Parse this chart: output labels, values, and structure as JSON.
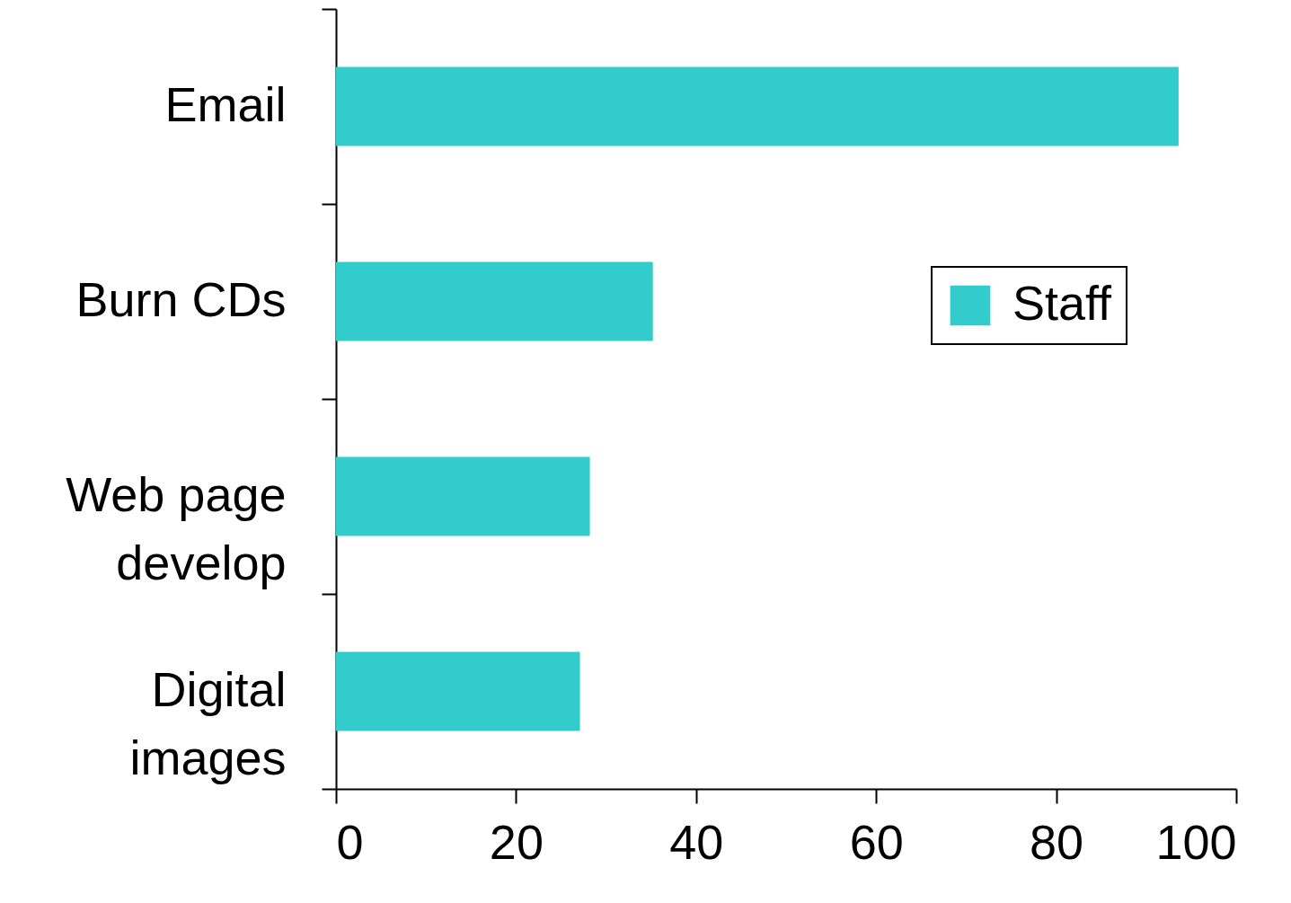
{
  "chart_data": {
    "type": "bar",
    "orientation": "horizontal",
    "categories": [
      "Email",
      "Burn CDs",
      "Web page\ndevelop",
      "Digital\nimages"
    ],
    "series": [
      {
        "name": "Staff",
        "color": "#33cccc",
        "values": [
          93.6,
          35.2,
          28.2,
          27.1
        ]
      }
    ],
    "xlim": [
      0,
      100
    ],
    "xticks": [
      0,
      20,
      40,
      60,
      80,
      100
    ],
    "legend": "right"
  }
}
